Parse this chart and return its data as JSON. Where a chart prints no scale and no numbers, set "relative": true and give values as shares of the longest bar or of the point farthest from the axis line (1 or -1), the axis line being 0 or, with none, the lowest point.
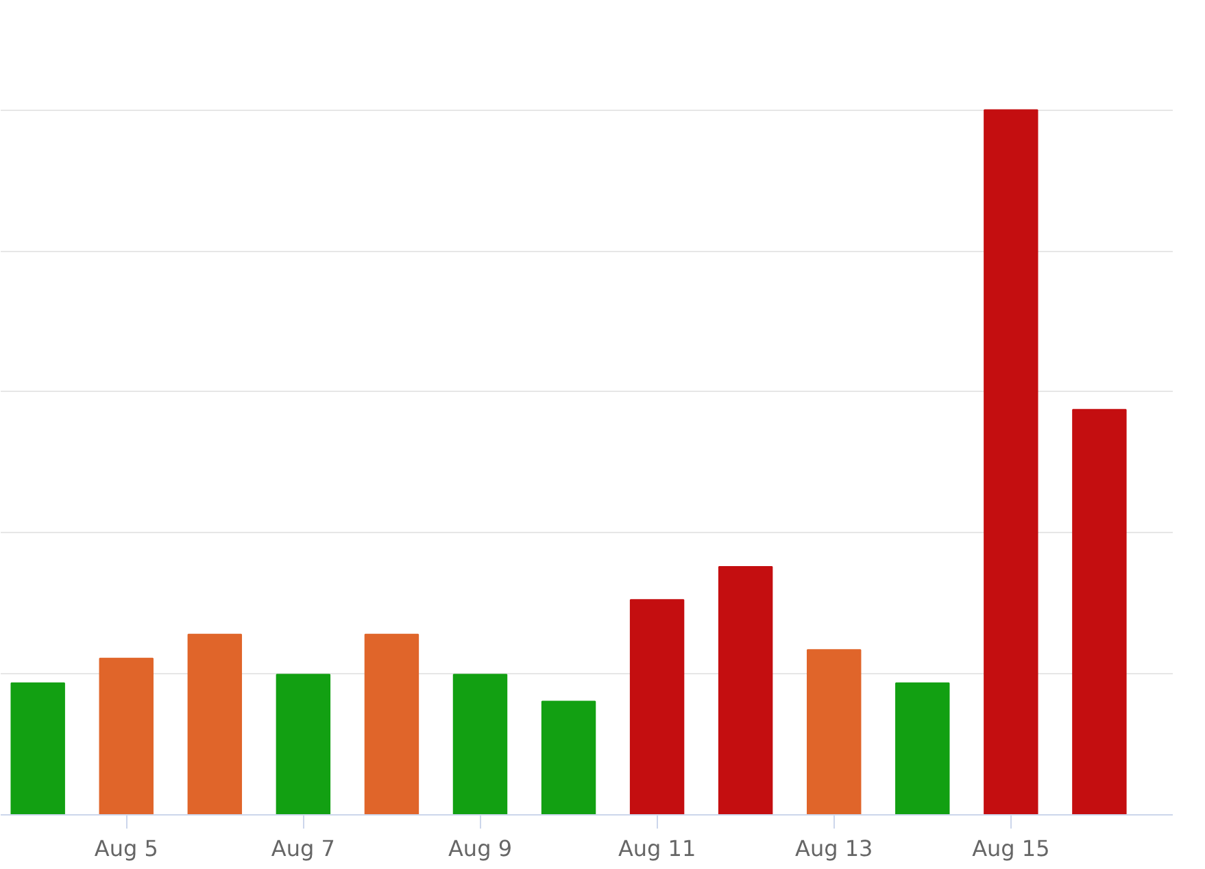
{
  "chart_data": {
    "type": "bar",
    "relative": true,
    "grid": "y",
    "categories": [
      null,
      "Aug 5",
      null,
      "Aug 7",
      null,
      "Aug 9",
      null,
      "Aug 11",
      null,
      "Aug 13",
      null,
      "Aug 15",
      null
    ],
    "values": [
      0.187,
      0.222,
      0.256,
      0.199,
      0.256,
      0.199,
      0.161,
      0.305,
      0.352,
      0.234,
      0.187,
      1,
      0.575
    ],
    "colors": [
      "#12a012",
      "#e0652a",
      "#e0652a",
      "#12a012",
      "#e0652a",
      "#12a012",
      "#12a012",
      "#c40e10",
      "#c40e10",
      "#e0652a",
      "#12a012",
      "#c40e10",
      "#c40e10"
    ]
  }
}
